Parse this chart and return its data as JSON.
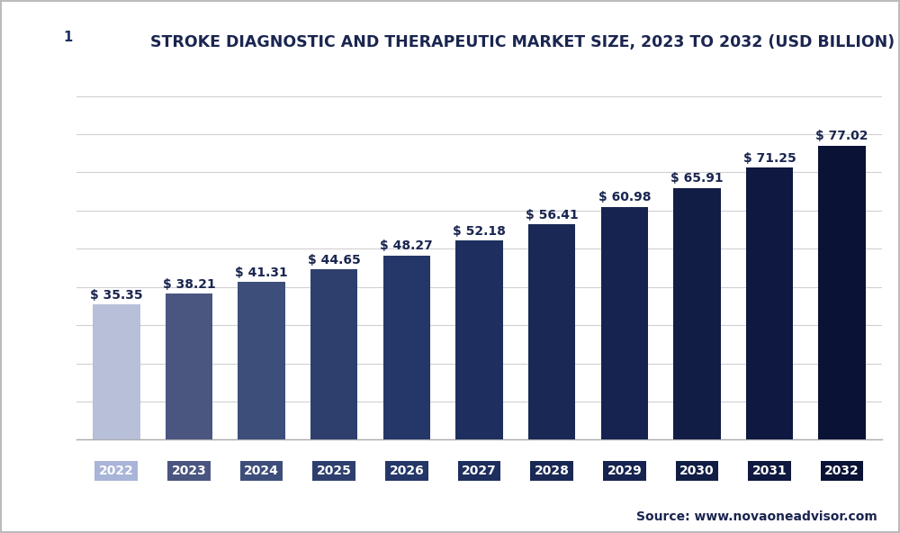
{
  "title": "STROKE DIAGNOSTIC AND THERAPEUTIC MARKET SIZE, 2023 TO 2032 (USD BILLION)",
  "categories": [
    "2022",
    "2023",
    "2024",
    "2025",
    "2026",
    "2027",
    "2028",
    "2029",
    "2030",
    "2031",
    "2032"
  ],
  "values": [
    35.35,
    38.21,
    41.31,
    44.65,
    48.27,
    52.18,
    56.41,
    60.98,
    65.91,
    71.25,
    77.02
  ],
  "bar_colors": [
    "#b8bfd8",
    "#4a5580",
    "#3d4e7a",
    "#2e3f6e",
    "#253669",
    "#1e2e5e",
    "#1a2855",
    "#162350",
    "#121d45",
    "#0e1840",
    "#0a1235"
  ],
  "tick_label_colors": [
    "#a8b4d8",
    "#4a5580",
    "#3d4e7a",
    "#2e3f6e",
    "#253669",
    "#1e2e5e",
    "#1a2855",
    "#162350",
    "#121d45",
    "#0e1840",
    "#0a1235"
  ],
  "value_label_color": "#1a2550",
  "ylim": [
    0,
    90
  ],
  "background_color": "#ffffff",
  "plot_bg_color": "#ffffff",
  "grid_color": "#d0d0d0",
  "source_text": "Source: www.novaoneadvisor.com",
  "title_fontsize": 12.5,
  "bar_label_fontsize": 10,
  "tick_label_fontsize": 10,
  "source_fontsize": 10,
  "logo_bg": "#1a2e5e",
  "logo_text_color": "#ffffff",
  "logo_box_color": "#ffffff",
  "logo_box_text_color": "#1a2e5e"
}
